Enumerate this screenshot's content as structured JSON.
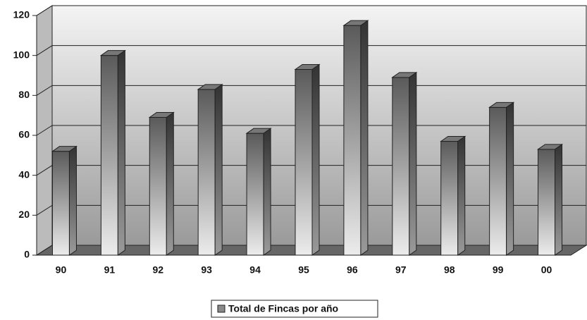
{
  "chart_data": {
    "type": "bar3d",
    "categories": [
      "90",
      "91",
      "92",
      "93",
      "94",
      "95",
      "96",
      "97",
      "98",
      "99",
      "00"
    ],
    "series": [
      {
        "name": "Total de Fincas por año",
        "color": "#8a8a8a",
        "values": [
          52,
          100,
          69,
          83,
          61,
          93,
          115,
          89,
          57,
          74,
          53
        ]
      }
    ],
    "ylim": [
      0,
      120
    ],
    "yticks": [
      0,
      20,
      40,
      60,
      80,
      100,
      120
    ],
    "grid": true,
    "legend": "bottom"
  }
}
